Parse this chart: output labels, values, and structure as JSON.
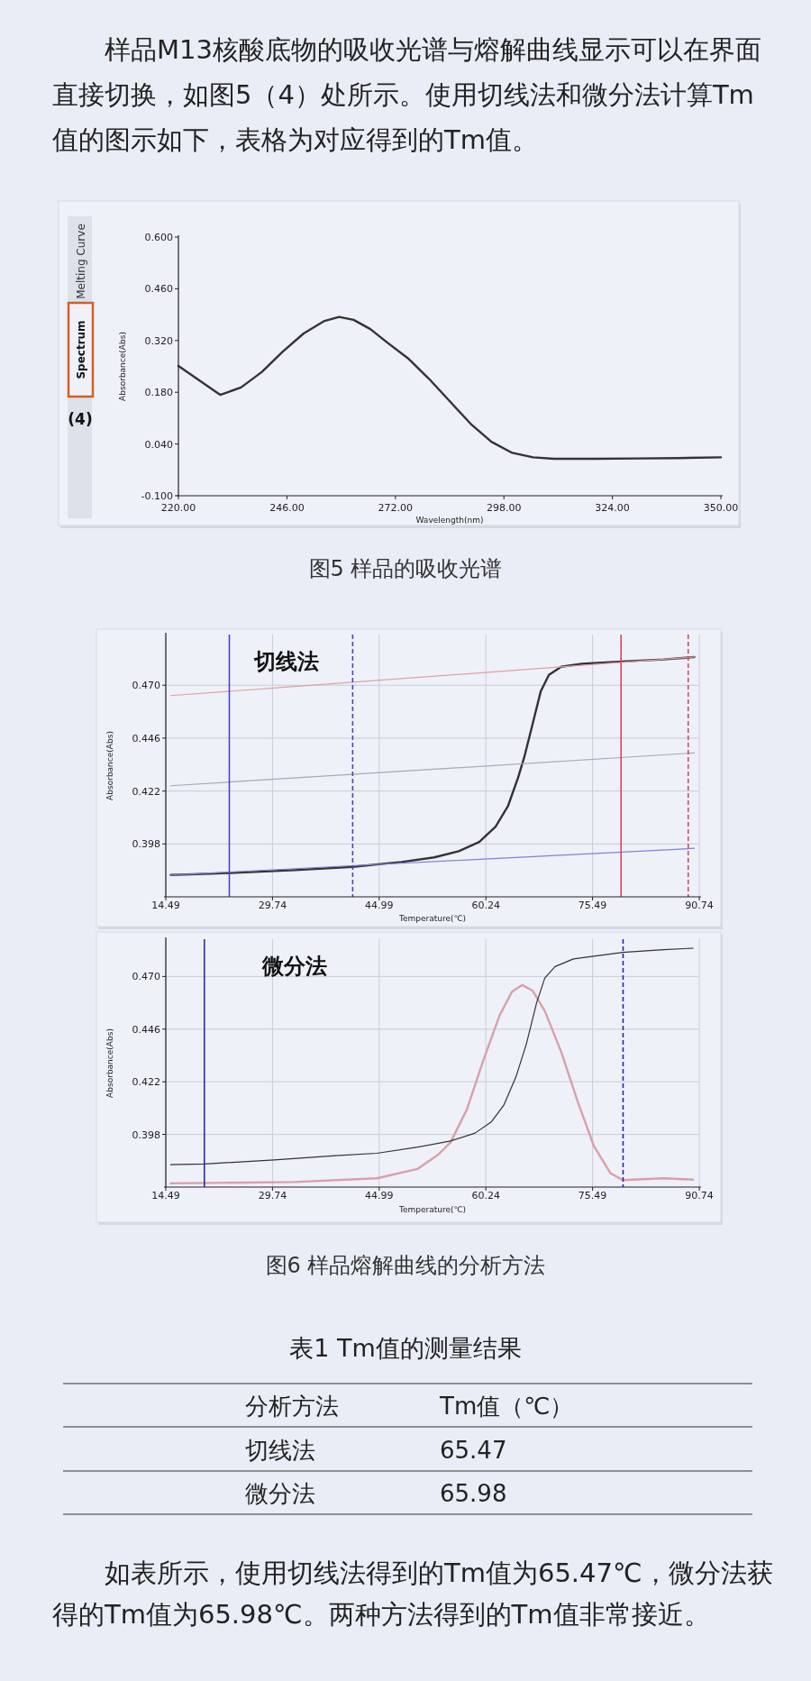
{
  "chart_data": [
    {
      "type": "line",
      "xlim": [
        220,
        350
      ],
      "xticks": [
        {
          "value": 220,
          "label": "220.00"
        },
        {
          "value": 246,
          "label": "246.00"
        },
        {
          "value": 272,
          "label": "272.00"
        },
        {
          "value": 298,
          "label": "298.00"
        },
        {
          "value": 324,
          "label": "324.00"
        },
        {
          "value": 350,
          "label": "350.00"
        }
      ],
      "ylim": [
        -0.1,
        0.6
      ],
      "yticks": [
        {
          "value": -0.1,
          "label": "-0.100"
        },
        {
          "value": 0.04,
          "label": "0.040"
        },
        {
          "value": 0.18,
          "label": "0.180"
        },
        {
          "value": 0.32,
          "label": "0.320"
        },
        {
          "value": 0.46,
          "label": "0.460"
        },
        {
          "value": 0.6,
          "label": "0.600"
        }
      ],
      "xlabel": "Wavelength(nm)",
      "ylabel": "Absorbance(Abs)",
      "series": [
        {
          "color": "#333333",
          "x": [
            220,
            230,
            235,
            240,
            245,
            250,
            255,
            258.5,
            262,
            266,
            270,
            275,
            280,
            285,
            290,
            295,
            300,
            305,
            310,
            320,
            330,
            340,
            350
          ],
          "values": [
            0.251,
            0.173,
            0.193,
            0.235,
            0.29,
            0.339,
            0.373,
            0.384,
            0.376,
            0.351,
            0.315,
            0.272,
            0.217,
            0.156,
            0.095,
            0.046,
            0.016,
            0.004,
            0.0,
            0.0,
            0.001,
            0.002,
            0.004
          ]
        }
      ],
      "annotations": [
        "样品M13核酸底物的吸收光谱与熔解曲线显示可以在界面直接切换，如图5（4）处所示。使用切线法和微分法计算Tm值的图示如下，表格为对应得到的Tm值。",
        "Melting Curve",
        "Spectrum",
        "(4)",
        "图5 样品的吸收光谱"
      ]
    },
    {
      "type": "line",
      "title": "切线法",
      "xlim": [
        14.49,
        90.74
      ],
      "xticks": [
        14.49,
        29.74,
        44.99,
        60.24,
        75.49,
        90.74
      ],
      "ylim": [
        0.374,
        0.493
      ],
      "yticks": [
        0.398,
        0.422,
        0.446,
        {
          "value": 0.47,
          "label": "0.470"
        }
      ],
      "xlabel": "Temperature(℃)",
      "ylabel": "Absorbance(Abs)",
      "grid": true,
      "series": [
        {
          "color": "#333333",
          "x": [
            15.19,
            23.57,
            32.94,
            41.14,
            48.16,
            52.85,
            56.36,
            59.29,
            61.63,
            63.39,
            64.85,
            65.73,
            66.91,
            68.08,
            69.25,
            71.01,
            73.93,
            79.79,
            85.64,
            90.04
          ],
          "values": [
            0.3839,
            0.3848,
            0.3861,
            0.3876,
            0.3898,
            0.3919,
            0.3947,
            0.3989,
            0.4058,
            0.4151,
            0.4281,
            0.4374,
            0.4523,
            0.4672,
            0.4747,
            0.4784,
            0.4797,
            0.4808,
            0.4817,
            0.4828
          ]
        },
        {
          "color": "#e0a0a0",
          "x": [
            15.19,
            90.04
          ],
          "values": [
            0.4653,
            0.4828
          ]
        },
        {
          "color": "#a8a8b8",
          "x": [
            15.19,
            90.04
          ],
          "values": [
            0.4244,
            0.4393
          ]
        },
        {
          "color": "#8080d8",
          "x": [
            15.19,
            90.04
          ],
          "values": [
            0.3839,
            0.396
          ]
        }
      ],
      "ref_lines": [
        {
          "axis": "x",
          "value": 23.57,
          "color": "#4646c0",
          "line_style": "solid"
        },
        {
          "axis": "x",
          "value": 41.2,
          "color": "#4646c0",
          "line_style": "dashed"
        },
        {
          "axis": "x",
          "value": 79.56,
          "color": "#d84858",
          "line_style": "solid"
        },
        {
          "axis": "x",
          "value": 89.16,
          "color": "#d84858",
          "line_style": "dashed"
        }
      ]
    },
    {
      "type": "line",
      "title": "微分法",
      "xlim": [
        14.49,
        90.74
      ],
      "xticks": [
        14.49,
        29.74,
        44.99,
        60.24,
        75.49,
        90.74
      ],
      "ylim": [
        0.374,
        0.487
      ],
      "yticks": [
        0.398,
        0.422,
        0.446,
        {
          "value": 0.47,
          "label": "0.470"
        }
      ],
      "xlabel": "Temperature(℃)",
      "ylabel": "Absorbance(Abs)",
      "grid": true,
      "series": [
        {
          "color": "#d8a0a8",
          "x": [
            15.19,
            32.94,
            44.65,
            50.5,
            53.43,
            55.19,
            57.53,
            59.88,
            62.22,
            63.98,
            65.44,
            66.91,
            68.66,
            71.01,
            73.35,
            75.69,
            78.03,
            79.79,
            82.72,
            85.64,
            89.86
          ],
          "values": [
            0.3757,
            0.3763,
            0.378,
            0.3823,
            0.3888,
            0.3944,
            0.4094,
            0.4318,
            0.4524,
            0.4631,
            0.4661,
            0.4636,
            0.4543,
            0.4356,
            0.4131,
            0.3926,
            0.3804,
            0.3772,
            0.3776,
            0.378,
            0.3774
          ]
        },
        {
          "color": "#333333",
          "x": [
            15.19,
            20.05,
            30.01,
            38.8,
            44.65,
            50.5,
            55.19,
            58.7,
            61.05,
            62.8,
            64.56,
            66.03,
            67.49,
            68.66,
            70.13,
            72.76,
            79.79,
            85.64,
            89.86
          ],
          "values": [
            0.3842,
            0.3845,
            0.3864,
            0.3883,
            0.3894,
            0.3922,
            0.395,
            0.3986,
            0.4038,
            0.4113,
            0.4244,
            0.4393,
            0.458,
            0.4693,
            0.4745,
            0.478,
            0.481,
            0.4822,
            0.4829
          ]
        }
      ],
      "ref_lines": [
        {
          "axis": "x",
          "value": 20.0,
          "color": "#2828b0",
          "line_style": "solid"
        },
        {
          "axis": "x",
          "value": 79.85,
          "color": "#2828b0",
          "line_style": "dashed"
        }
      ],
      "annotations": [
        "图6 样品熔解曲线的分析方法"
      ]
    },
    {
      "type": "other",
      "title": "表1 Tm值的测量结果",
      "categories": [
        "切线法",
        "微分法"
      ],
      "values": [
        65.47,
        65.98
      ],
      "data_labels": true,
      "annotations": [
        "分析方法",
        "Tm值（℃）",
        "如表所示，使用切线法得到的Tm值为65.47℃，微分法获得的Tm值为65.98℃。两种方法得到的Tm值非常接近。"
      ]
    }
  ]
}
